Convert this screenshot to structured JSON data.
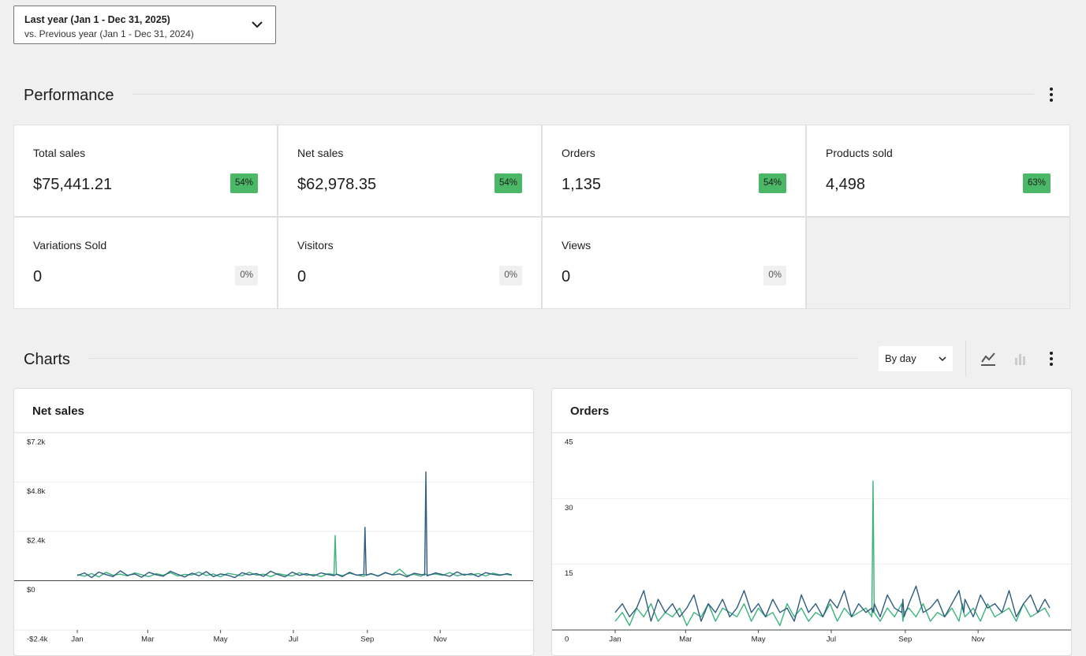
{
  "date_range": {
    "primary": "Last year (Jan 1 - Dec 31, 2025)",
    "compare": "vs. Previous year (Jan 1 - Dec 31, 2024)"
  },
  "performance": {
    "heading": "Performance",
    "cards": [
      {
        "label": "Total sales",
        "value": "$75,441.21",
        "delta": "54%"
      },
      {
        "label": "Net sales",
        "value": "$62,978.35",
        "delta": "54%"
      },
      {
        "label": "Orders",
        "value": "1,135",
        "delta": "54%"
      },
      {
        "label": "Products sold",
        "value": "4,498",
        "delta": "63%"
      },
      {
        "label": "Variations Sold",
        "value": "0",
        "delta": "0%"
      },
      {
        "label": "Visitors",
        "value": "0",
        "delta": "0%"
      },
      {
        "label": "Views",
        "value": "0",
        "delta": "0%"
      }
    ]
  },
  "charts_section": {
    "heading": "Charts",
    "interval": "By day"
  },
  "chart_data": [
    {
      "type": "line",
      "title": "Net sales",
      "x": [
        1,
        7,
        13,
        19,
        25,
        31,
        37,
        43,
        49,
        55,
        61,
        67,
        73,
        79,
        85,
        91,
        97,
        103,
        109,
        115,
        121,
        127,
        133,
        139,
        145,
        151,
        157,
        163,
        169,
        175,
        181,
        187,
        193,
        199,
        205,
        211,
        216,
        217,
        218,
        223,
        229,
        235,
        241,
        242,
        243,
        247,
        253,
        259,
        265,
        271,
        277,
        283,
        289,
        292,
        293,
        294,
        301,
        307,
        313,
        319,
        325,
        331,
        337,
        343,
        349,
        355,
        361,
        365
      ],
      "xlim": [
        1,
        365
      ],
      "xticks": [
        {
          "value": 1,
          "label": "Jan"
        },
        {
          "value": 60,
          "label": "Mar"
        },
        {
          "value": 121,
          "label": "May"
        },
        {
          "value": 182,
          "label": "Jul"
        },
        {
          "value": 244,
          "label": "Sep"
        },
        {
          "value": 305,
          "label": "Nov"
        }
      ],
      "ylim": [
        -2400,
        7200
      ],
      "yticks": [
        {
          "value": -2400,
          "label": "-$2.4k"
        },
        {
          "value": 0,
          "label": "$0"
        },
        {
          "value": 2400,
          "label": "$2.4k"
        },
        {
          "value": 4800,
          "label": "$4.8k"
        },
        {
          "value": 7200,
          "label": "$7.2k"
        }
      ],
      "grid": true,
      "series": [
        {
          "color": "#3bb37b",
          "values": [
            300,
            220,
            350,
            180,
            410,
            260,
            320,
            230,
            380,
            290,
            200,
            340,
            270,
            390,
            230,
            310,
            280,
            420,
            250,
            330,
            190,
            360,
            300,
            240,
            410,
            270,
            320,
            200,
            350,
            280,
            230,
            390,
            260,
            310,
            200,
            340,
            300,
            2200,
            320,
            250,
            360,
            280,
            210,
            300,
            270,
            330,
            240,
            380,
            290,
            560,
            250,
            310,
            220,
            350,
            300,
            270,
            330,
            260,
            400,
            240,
            320,
            280,
            350,
            230,
            370,
            290,
            310,
            260
          ]
        },
        {
          "color": "#2f5c7f",
          "values": [
            250,
            380,
            150,
            420,
            300,
            200,
            480,
            260,
            330,
            170,
            410,
            290,
            220,
            460,
            310,
            180,
            370,
            240,
            440,
            200,
            330,
            270,
            150,
            390,
            280,
            350,
            210,
            460,
            300,
            190,
            420,
            260,
            340,
            230,
            380,
            300,
            250,
            280,
            320,
            200,
            410,
            270,
            310,
            2600,
            260,
            350,
            220,
            400,
            280,
            330,
            190,
            360,
            300,
            280,
            5300,
            240,
            380,
            300,
            210,
            430,
            270,
            350,
            200,
            390,
            310,
            260,
            340,
            280
          ]
        }
      ]
    },
    {
      "type": "line",
      "title": "Orders",
      "x": [
        1,
        7,
        13,
        19,
        25,
        31,
        37,
        43,
        49,
        55,
        61,
        67,
        73,
        79,
        85,
        91,
        97,
        103,
        109,
        115,
        121,
        127,
        133,
        139,
        145,
        151,
        157,
        163,
        169,
        175,
        181,
        187,
        193,
        199,
        205,
        211,
        216,
        217,
        218,
        223,
        229,
        235,
        241,
        242,
        243,
        247,
        253,
        259,
        265,
        271,
        277,
        283,
        289,
        292,
        293,
        294,
        301,
        307,
        313,
        319,
        325,
        331,
        337,
        343,
        349,
        355,
        361,
        365
      ],
      "xlim": [
        1,
        365
      ],
      "xticks": [
        {
          "value": 1,
          "label": "Jan"
        },
        {
          "value": 60,
          "label": "Mar"
        },
        {
          "value": 121,
          "label": "May"
        },
        {
          "value": 182,
          "label": "Jul"
        },
        {
          "value": 244,
          "label": "Sep"
        },
        {
          "value": 305,
          "label": "Nov"
        }
      ],
      "ylim": [
        0,
        45
      ],
      "yticks": [
        0,
        15,
        30,
        45
      ],
      "grid": true,
      "series": [
        {
          "color": "#3bb37b",
          "values": [
            2,
            4,
            1,
            5,
            3,
            6,
            2,
            4,
            3,
            5,
            1,
            4,
            3,
            6,
            2,
            5,
            4,
            3,
            6,
            2,
            5,
            3,
            4,
            1,
            6,
            3,
            5,
            2,
            4,
            3,
            6,
            2,
            5,
            3,
            4,
            5,
            3,
            34,
            4,
            2,
            5,
            3,
            6,
            2,
            4,
            5,
            3,
            6,
            2,
            4,
            3,
            5,
            2,
            6,
            4,
            3,
            5,
            2,
            6,
            3,
            4,
            5,
            2,
            6,
            3,
            4,
            5,
            3
          ]
        },
        {
          "color": "#2f5c7f",
          "values": [
            4,
            6,
            3,
            5,
            9,
            2,
            7,
            4,
            6,
            3,
            5,
            8,
            2,
            6,
            4,
            7,
            3,
            5,
            9,
            4,
            6,
            3,
            7,
            4,
            5,
            2,
            8,
            4,
            6,
            3,
            7,
            5,
            9,
            3,
            6,
            4,
            5,
            4,
            6,
            3,
            8,
            5,
            4,
            7,
            3,
            6,
            10,
            4,
            5,
            7,
            3,
            6,
            9,
            5,
            4,
            7,
            3,
            8,
            5,
            6,
            4,
            9,
            3,
            6,
            8,
            4,
            7,
            5
          ]
        }
      ]
    }
  ]
}
